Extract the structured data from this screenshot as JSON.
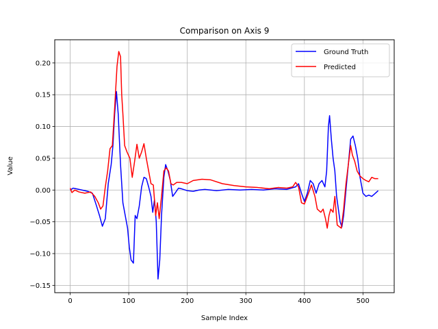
{
  "chart_data": {
    "type": "line",
    "title": "Comparison on Axis 9",
    "xlabel": "Sample Index",
    "ylabel": "Value",
    "xlim": [
      -26.35,
      553.35
    ],
    "ylim": [
      -0.1615,
      0.2365
    ],
    "xticks": [
      0,
      100,
      200,
      300,
      400,
      500
    ],
    "yticks": [
      -0.15,
      -0.1,
      -0.05,
      0.0,
      0.05,
      0.1,
      0.15,
      0.2
    ],
    "ytick_labels": [
      "−0.15",
      "−0.10",
      "−0.05",
      "0.00",
      "0.05",
      "0.10",
      "0.15",
      "0.20"
    ],
    "grid": true,
    "legend_position": "top-right",
    "series": [
      {
        "name": "Ground Truth",
        "color": "#0000ff",
        "points": [
          [
            0,
            0.0
          ],
          [
            5,
            0.003
          ],
          [
            10,
            0.002
          ],
          [
            20,
            0.0
          ],
          [
            30,
            -0.002
          ],
          [
            38,
            -0.005
          ],
          [
            45,
            -0.025
          ],
          [
            50,
            -0.04
          ],
          [
            55,
            -0.057
          ],
          [
            60,
            -0.045
          ],
          [
            65,
            0.01
          ],
          [
            70,
            0.04
          ],
          [
            73,
            0.07
          ],
          [
            76,
            0.12
          ],
          [
            79,
            0.155
          ],
          [
            82,
            0.12
          ],
          [
            86,
            0.04
          ],
          [
            90,
            -0.02
          ],
          [
            95,
            -0.045
          ],
          [
            98,
            -0.06
          ],
          [
            101,
            -0.09
          ],
          [
            104,
            -0.11
          ],
          [
            108,
            -0.115
          ],
          [
            111,
            -0.04
          ],
          [
            114,
            -0.045
          ],
          [
            118,
            -0.025
          ],
          [
            122,
            0.005
          ],
          [
            126,
            0.02
          ],
          [
            130,
            0.018
          ],
          [
            134,
            0.005
          ],
          [
            138,
            -0.01
          ],
          [
            141,
            -0.035
          ],
          [
            144,
            -0.015
          ],
          [
            147,
            -0.05
          ],
          [
            150,
            -0.14
          ],
          [
            153,
            -0.11
          ],
          [
            156,
            -0.04
          ],
          [
            160,
            0.02
          ],
          [
            163,
            0.04
          ],
          [
            167,
            0.03
          ],
          [
            171,
            0.015
          ],
          [
            175,
            -0.01
          ],
          [
            179,
            -0.005
          ],
          [
            185,
            0.003
          ],
          [
            190,
            0.002
          ],
          [
            200,
            -0.001
          ],
          [
            210,
            -0.002
          ],
          [
            220,
            0.0
          ],
          [
            230,
            0.001
          ],
          [
            240,
            0.0
          ],
          [
            250,
            -0.001
          ],
          [
            270,
            0.001
          ],
          [
            290,
            0.0
          ],
          [
            310,
            0.001
          ],
          [
            330,
            0.0
          ],
          [
            350,
            0.002
          ],
          [
            370,
            0.001
          ],
          [
            385,
            0.005
          ],
          [
            390,
            0.01
          ],
          [
            395,
            -0.005
          ],
          [
            400,
            -0.018
          ],
          [
            405,
            -0.005
          ],
          [
            410,
            0.015
          ],
          [
            415,
            0.01
          ],
          [
            420,
            -0.005
          ],
          [
            425,
            0.01
          ],
          [
            430,
            0.015
          ],
          [
            435,
            0.005
          ],
          [
            438,
            0.03
          ],
          [
            441,
            0.1
          ],
          [
            443,
            0.117
          ],
          [
            446,
            0.08
          ],
          [
            449,
            0.05
          ],
          [
            452,
            0.03
          ],
          [
            455,
            -0.01
          ],
          [
            458,
            -0.03
          ],
          [
            461,
            -0.05
          ],
          [
            464,
            -0.058
          ],
          [
            467,
            -0.04
          ],
          [
            471,
            0.0
          ],
          [
            475,
            0.04
          ],
          [
            479,
            0.08
          ],
          [
            483,
            0.085
          ],
          [
            487,
            0.07
          ],
          [
            491,
            0.05
          ],
          [
            495,
            0.02
          ],
          [
            500,
            -0.005
          ],
          [
            505,
            -0.01
          ],
          [
            510,
            -0.008
          ],
          [
            515,
            -0.01
          ],
          [
            520,
            -0.006
          ],
          [
            526,
            -0.001
          ]
        ]
      },
      {
        "name": "Predicted",
        "color": "#ff0000",
        "points": [
          [
            0,
            0.003
          ],
          [
            3,
            -0.004
          ],
          [
            8,
            0.0
          ],
          [
            15,
            -0.003
          ],
          [
            25,
            -0.005
          ],
          [
            35,
            -0.003
          ],
          [
            42,
            -0.01
          ],
          [
            48,
            -0.02
          ],
          [
            52,
            -0.03
          ],
          [
            56,
            -0.025
          ],
          [
            60,
            0.005
          ],
          [
            64,
            0.03
          ],
          [
            68,
            0.065
          ],
          [
            72,
            0.07
          ],
          [
            76,
            0.13
          ],
          [
            80,
            0.195
          ],
          [
            83,
            0.218
          ],
          [
            86,
            0.21
          ],
          [
            88,
            0.15
          ],
          [
            90,
            0.12
          ],
          [
            93,
            0.07
          ],
          [
            97,
            0.06
          ],
          [
            102,
            0.05
          ],
          [
            106,
            0.02
          ],
          [
            110,
            0.045
          ],
          [
            114,
            0.072
          ],
          [
            118,
            0.05
          ],
          [
            122,
            0.06
          ],
          [
            126,
            0.073
          ],
          [
            130,
            0.05
          ],
          [
            134,
            0.03
          ],
          [
            138,
            0.01
          ],
          [
            142,
            0.008
          ],
          [
            146,
            -0.04
          ],
          [
            149,
            -0.02
          ],
          [
            152,
            -0.045
          ],
          [
            156,
            -0.01
          ],
          [
            160,
            0.03
          ],
          [
            164,
            0.035
          ],
          [
            168,
            0.03
          ],
          [
            172,
            0.01
          ],
          [
            176,
            0.008
          ],
          [
            182,
            0.012
          ],
          [
            190,
            0.012
          ],
          [
            200,
            0.01
          ],
          [
            210,
            0.015
          ],
          [
            225,
            0.017
          ],
          [
            240,
            0.016
          ],
          [
            260,
            0.01
          ],
          [
            280,
            0.007
          ],
          [
            300,
            0.005
          ],
          [
            320,
            0.004
          ],
          [
            340,
            0.002
          ],
          [
            355,
            0.004
          ],
          [
            370,
            0.003
          ],
          [
            380,
            0.005
          ],
          [
            385,
            0.012
          ],
          [
            390,
            0.005
          ],
          [
            395,
            -0.02
          ],
          [
            400,
            -0.022
          ],
          [
            405,
            -0.01
          ],
          [
            409,
            0.0
          ],
          [
            412,
            0.008
          ],
          [
            418,
            -0.01
          ],
          [
            422,
            -0.03
          ],
          [
            428,
            -0.035
          ],
          [
            432,
            -0.03
          ],
          [
            436,
            -0.045
          ],
          [
            439,
            -0.06
          ],
          [
            442,
            -0.04
          ],
          [
            445,
            -0.03
          ],
          [
            449,
            -0.035
          ],
          [
            452,
            -0.01
          ],
          [
            456,
            -0.055
          ],
          [
            460,
            -0.058
          ],
          [
            463,
            -0.06
          ],
          [
            467,
            -0.03
          ],
          [
            471,
            0.01
          ],
          [
            475,
            0.04
          ],
          [
            479,
            0.07
          ],
          [
            482,
            0.055
          ],
          [
            486,
            0.045
          ],
          [
            490,
            0.03
          ],
          [
            495,
            0.022
          ],
          [
            500,
            0.018
          ],
          [
            505,
            0.015
          ],
          [
            510,
            0.013
          ],
          [
            515,
            0.02
          ],
          [
            520,
            0.018
          ],
          [
            526,
            0.018
          ]
        ]
      }
    ]
  }
}
